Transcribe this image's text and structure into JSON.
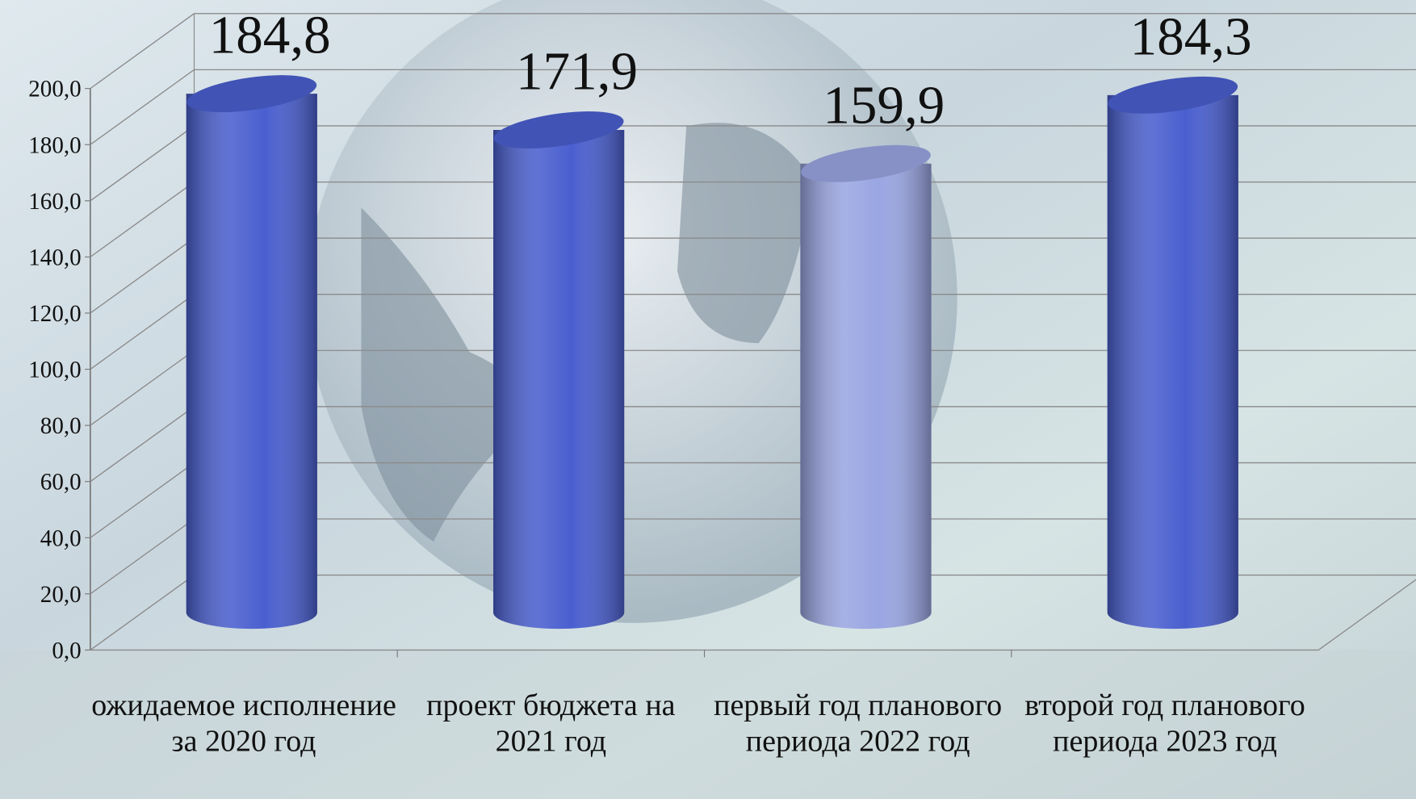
{
  "chart_data": {
    "type": "bar",
    "categories": [
      "ожидаемое исполнение за 2020 год",
      "проект бюджета на 2021 год",
      "первый год планового периода 2022 год",
      "второй год планового периода 2023 год"
    ],
    "values": [
      184.8,
      171.9,
      159.9,
      184.3
    ],
    "value_labels": [
      "184,8",
      "171,9",
      "159,9",
      "184,3"
    ],
    "colors": [
      "#4a5fcf",
      "#4a5fcf",
      "#9aa6e2",
      "#4a5fcf"
    ],
    "ylim": [
      0,
      200
    ],
    "yticks": [
      {
        "value": 0,
        "label": "0,0"
      },
      {
        "value": 20,
        "label": "20,0"
      },
      {
        "value": 40,
        "label": "40,0"
      },
      {
        "value": 60,
        "label": "60,0"
      },
      {
        "value": 80,
        "label": "80,0"
      },
      {
        "value": 100,
        "label": "100,0"
      },
      {
        "value": 120,
        "label": "120,0"
      },
      {
        "value": 140,
        "label": "140,0"
      },
      {
        "value": 160,
        "label": "160,0"
      },
      {
        "value": 180,
        "label": "180,0"
      },
      {
        "value": 200,
        "label": "200,0"
      }
    ],
    "grid": true
  }
}
